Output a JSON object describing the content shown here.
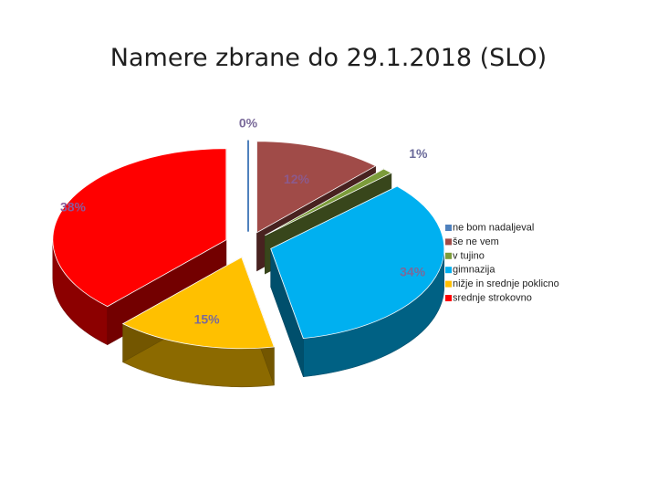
{
  "chart_data": {
    "type": "pie",
    "title": "Namere zbrane do 29.1.2018 (SLO)",
    "legend_position": "right",
    "slices": [
      {
        "label": "ne bom nadaljeval",
        "value": 0,
        "value_label": "0%",
        "color": "#4F81BD",
        "label_color": "#7A6A9A"
      },
      {
        "label": "še ne vem",
        "value": 12,
        "value_label": "12%",
        "color": "#A04B48",
        "label_color": "#8C5A8C"
      },
      {
        "label": "v tujino",
        "value": 1,
        "value_label": "1%",
        "color": "#7C9C3B",
        "label_color": "#6A6A9A"
      },
      {
        "label": "gimnazija",
        "value": 34,
        "value_label": "34%",
        "color": "#00B0F0",
        "label_color": "#7A6A9A"
      },
      {
        "label": "nižje in srednje poklicno",
        "value": 15,
        "value_label": "15%",
        "color": "#FFC000",
        "label_color": "#7A6A9A"
      },
      {
        "label": "srednje strokovno",
        "value": 38,
        "value_label": "38%",
        "color": "#FF0000",
        "label_color": "#8C5A9A"
      }
    ]
  }
}
